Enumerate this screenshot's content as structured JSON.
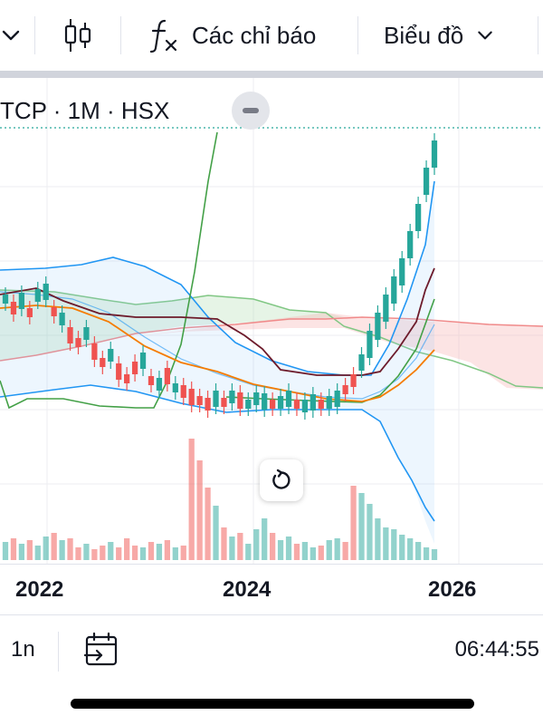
{
  "toolbar": {
    "indicators_label": "Các chỉ báo",
    "chart_label": "Biểu đồ",
    "icons": [
      "chevron-down-icon",
      "candlestick-icon",
      "fx-icon",
      "chevron-down-icon"
    ]
  },
  "legend": {
    "symbol_info": "TCP · 1M · HSX"
  },
  "time_axis": {
    "years": [
      "2022",
      "2024",
      "2026"
    ]
  },
  "bottom_bar": {
    "range_label": "1n",
    "clock": "06:44:55"
  },
  "colors": {
    "up": "#26a69a",
    "down": "#ef5350",
    "bollinger": "#2196f3",
    "ema": "#f57c00",
    "maroon_line": "#6d1b2b",
    "green_line": "#43a047",
    "cloud_green": "#a5d6a7",
    "cloud_red": "#f7b2b2"
  },
  "chart_data": {
    "type": "candlestick",
    "symbol": "TCP",
    "interval": "1M",
    "exchange": "HSX",
    "x_ticks": [
      "2022",
      "2024",
      "2026"
    ],
    "notes": "Monthly candlesticks with Bollinger Bands, Ichimoku cloud, moving average and volume histogram; price axis labels not visible.",
    "candles": [
      {
        "dir": "up"
      },
      {
        "dir": "down"
      },
      {
        "dir": "up"
      },
      {
        "dir": "down"
      },
      {
        "dir": "up"
      },
      {
        "dir": "up"
      },
      {
        "dir": "down"
      },
      {
        "dir": "up"
      },
      {
        "dir": "down"
      },
      {
        "dir": "down"
      },
      {
        "dir": "up"
      },
      {
        "dir": "down"
      },
      {
        "dir": "down"
      },
      {
        "dir": "up"
      },
      {
        "dir": "down"
      },
      {
        "dir": "down"
      },
      {
        "dir": "down"
      },
      {
        "dir": "up"
      },
      {
        "dir": "down"
      },
      {
        "dir": "up"
      },
      {
        "dir": "down"
      },
      {
        "dir": "up"
      },
      {
        "dir": "down"
      },
      {
        "dir": "down"
      },
      {
        "dir": "down"
      },
      {
        "dir": "down"
      },
      {
        "dir": "up"
      },
      {
        "dir": "down"
      },
      {
        "dir": "up"
      },
      {
        "dir": "down"
      },
      {
        "dir": "up"
      },
      {
        "dir": "up"
      },
      {
        "dir": "up"
      },
      {
        "dir": "down"
      },
      {
        "dir": "up"
      },
      {
        "dir": "up"
      },
      {
        "dir": "down"
      },
      {
        "dir": "up"
      },
      {
        "dir": "up"
      },
      {
        "dir": "down"
      },
      {
        "dir": "up"
      },
      {
        "dir": "up"
      },
      {
        "dir": "down"
      },
      {
        "dir": "down"
      },
      {
        "dir": "up"
      },
      {
        "dir": "up"
      },
      {
        "dir": "up"
      },
      {
        "dir": "up"
      },
      {
        "dir": "up"
      },
      {
        "dir": "up"
      },
      {
        "dir": "up"
      },
      {
        "dir": "up"
      },
      {
        "dir": "up"
      },
      {
        "dir": "up"
      }
    ]
  }
}
